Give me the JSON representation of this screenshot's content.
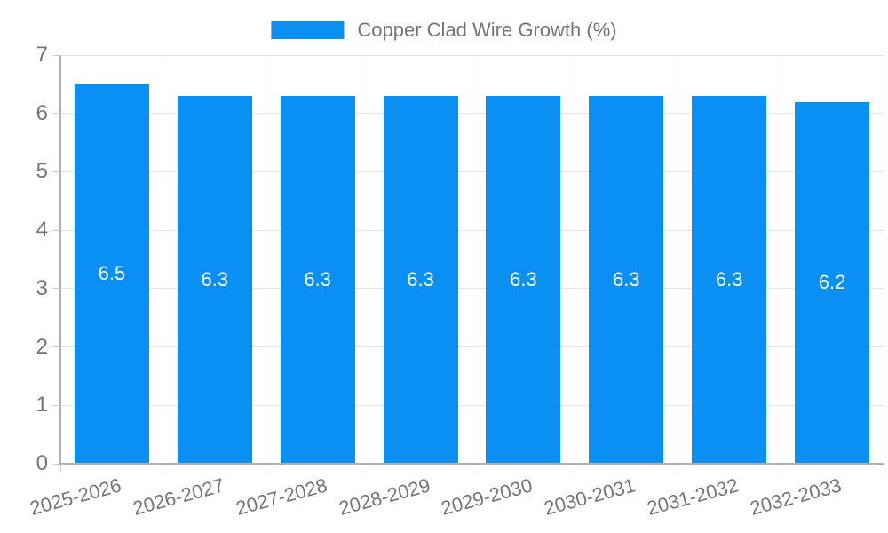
{
  "legend": {
    "items": [
      {
        "label": "Copper Clad Wire Growth (%)",
        "color": "#0a90f2"
      }
    ]
  },
  "chart_data": {
    "type": "bar",
    "title": "Copper Clad Wire Growth (%)",
    "categories": [
      "2025-2026",
      "2026-2027",
      "2027-2028",
      "2028-2029",
      "2029-2030",
      "2030-2031",
      "2031-2032",
      "2032-2033"
    ],
    "values": [
      6.5,
      6.3,
      6.3,
      6.3,
      6.3,
      6.3,
      6.3,
      6.2
    ],
    "value_labels_shown": true,
    "value_label_position": "middle-of-bar",
    "xlabel": "",
    "ylabel": "",
    "ylim": [
      0,
      7
    ],
    "yticks": [
      0,
      1,
      2,
      3,
      4,
      5,
      6,
      7
    ],
    "grid": true,
    "legend_position": "top-center",
    "xtick_rotation_deg": -15
  },
  "colors": {
    "bar": "#0a90f2",
    "axis_text": "#757575",
    "grid_line": "#e4e4e4",
    "axis_line": "#b0b0b0",
    "tick_stub": "#cccccc",
    "value_text": "#ffffff",
    "background": "#ffffff"
  }
}
